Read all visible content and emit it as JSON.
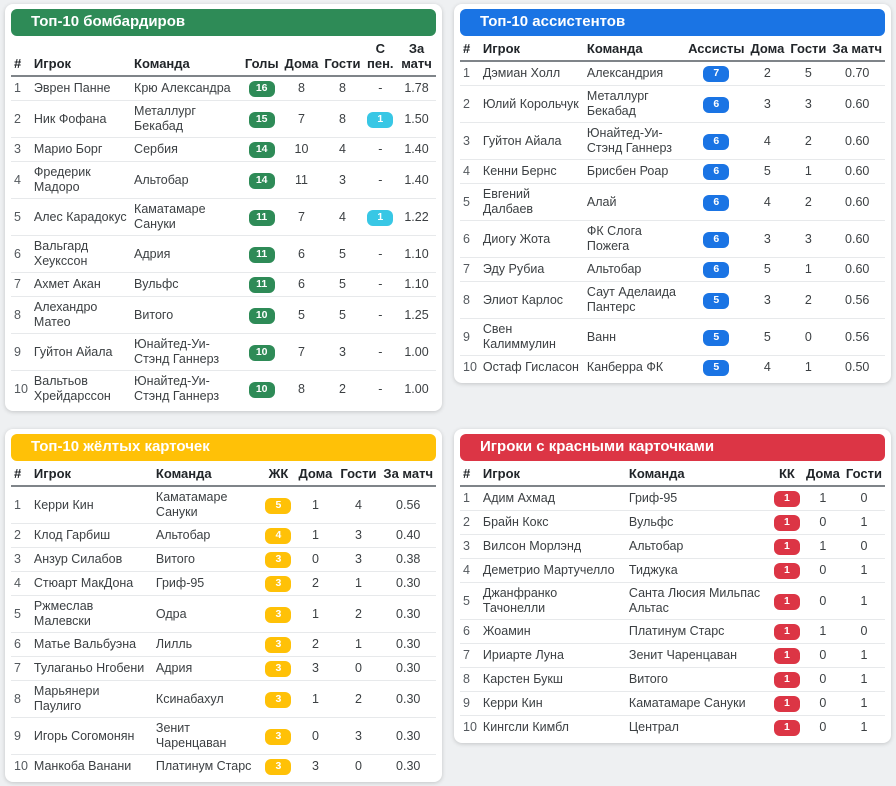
{
  "colors": {
    "page_background": "#eef0f2",
    "card_background": "#ffffff",
    "scorers_accent": "#2e8b57",
    "assists_accent": "#1a74e4",
    "yellow_accent": "#ffc107",
    "red_accent": "#dc3545",
    "penalty_badge": "#38c7e5"
  },
  "tables": [
    {
      "id": "scorers",
      "title": "Топ-10 бомбардиров",
      "accent": "#2e8b57",
      "badge_col": 3,
      "pen_col": 6,
      "pen_badge_color": "#38c7e5",
      "columns": [
        "#",
        "Игрок",
        "Команда",
        "Голы",
        "Дома",
        "Гости",
        "С пен.",
        "За матч"
      ],
      "rows": [
        [
          "1",
          "Эврен Панне",
          "Крю Александра",
          "16",
          "8",
          "8",
          "-",
          "1.78"
        ],
        [
          "2",
          "Ник Фофана",
          "Металлург Бекабад",
          "15",
          "7",
          "8",
          "1",
          "1.50"
        ],
        [
          "3",
          "Марио Борг",
          "Сербия",
          "14",
          "10",
          "4",
          "-",
          "1.40"
        ],
        [
          "4",
          "Фредерик Мадоро",
          "Альтобар",
          "14",
          "11",
          "3",
          "-",
          "1.40"
        ],
        [
          "5",
          "Алес Карадокус",
          "Каматамаре Сануки",
          "11",
          "7",
          "4",
          "1",
          "1.22"
        ],
        [
          "6",
          "Вальгард Хеукссон",
          "Адрия",
          "11",
          "6",
          "5",
          "-",
          "1.10"
        ],
        [
          "7",
          "Ахмет Акан",
          "Вульфс",
          "11",
          "6",
          "5",
          "-",
          "1.10"
        ],
        [
          "8",
          "Алехандро Матео",
          "Витого",
          "10",
          "5",
          "5",
          "-",
          "1.25"
        ],
        [
          "9",
          "Гуйтон Айала",
          "Юнайтед-Уи-Стэнд Ганнерз",
          "10",
          "7",
          "3",
          "-",
          "1.00"
        ],
        [
          "10",
          "Вальтьов Хрейдарссон",
          "Юнайтед-Уи-Стэнд Ганнерз",
          "10",
          "8",
          "2",
          "-",
          "1.00"
        ]
      ]
    },
    {
      "id": "assists",
      "title": "Топ-10 ассистентов",
      "accent": "#1a74e4",
      "badge_col": 3,
      "columns": [
        "#",
        "Игрок",
        "Команда",
        "Ассисты",
        "Дома",
        "Гости",
        "За матч"
      ],
      "rows": [
        [
          "1",
          "Дэмиан Холл",
          "Александрия",
          "7",
          "2",
          "5",
          "0.70"
        ],
        [
          "2",
          "Юлий Корольчук",
          "Металлург Бекабад",
          "6",
          "3",
          "3",
          "0.60"
        ],
        [
          "3",
          "Гуйтон Айала",
          "Юнайтед-Уи-Стэнд Ганнерз",
          "6",
          "4",
          "2",
          "0.60"
        ],
        [
          "4",
          "Кенни Бернс",
          "Брисбен Роар",
          "6",
          "5",
          "1",
          "0.60"
        ],
        [
          "5",
          "Евгений Далбаев",
          "Алай",
          "6",
          "4",
          "2",
          "0.60"
        ],
        [
          "6",
          "Диогу Жота",
          "ФК Слога Пожега",
          "6",
          "3",
          "3",
          "0.60"
        ],
        [
          "7",
          "Эду Рубиа",
          "Альтобар",
          "6",
          "5",
          "1",
          "0.60"
        ],
        [
          "8",
          "Элиот Карлос",
          "Саут Аделаида Пантерс",
          "5",
          "3",
          "2",
          "0.56"
        ],
        [
          "9",
          "Свен Калиммулин",
          "Ванн",
          "5",
          "5",
          "0",
          "0.56"
        ],
        [
          "10",
          "Остаф Гисласон",
          "Канберра ФК",
          "5",
          "4",
          "1",
          "0.50"
        ]
      ]
    },
    {
      "id": "yellow-cards",
      "title": "Топ-10 жёлтых карточек",
      "accent": "#ffc107",
      "badge_col": 3,
      "columns": [
        "#",
        "Игрок",
        "Команда",
        "ЖК",
        "Дома",
        "Гости",
        "За матч"
      ],
      "rows": [
        [
          "1",
          "Керри Кин",
          "Каматамаре Сануки",
          "5",
          "1",
          "4",
          "0.56"
        ],
        [
          "2",
          "Клод Гарбиш",
          "Альтобар",
          "4",
          "1",
          "3",
          "0.40"
        ],
        [
          "3",
          "Анзур Силабов",
          "Витого",
          "3",
          "0",
          "3",
          "0.38"
        ],
        [
          "4",
          "Стюарт МакДона",
          "Гриф-95",
          "3",
          "2",
          "1",
          "0.30"
        ],
        [
          "5",
          "Ржмеслав Малевски",
          "Одра",
          "3",
          "1",
          "2",
          "0.30"
        ],
        [
          "6",
          "Матье Вальбуэна",
          "Лилль",
          "3",
          "2",
          "1",
          "0.30"
        ],
        [
          "7",
          "Тулаганьо Нгобени",
          "Адрия",
          "3",
          "3",
          "0",
          "0.30"
        ],
        [
          "8",
          "Марьянери Паулиго",
          "Ксинабахул",
          "3",
          "1",
          "2",
          "0.30"
        ],
        [
          "9",
          "Игорь Согомонян",
          "Зенит Чаренцаван",
          "3",
          "0",
          "3",
          "0.30"
        ],
        [
          "10",
          "Манкоба Ванани",
          "Платинум Старс",
          "3",
          "3",
          "0",
          "0.30"
        ]
      ]
    },
    {
      "id": "red-cards",
      "title": "Игроки с красными карточками",
      "accent": "#dc3545",
      "badge_col": 3,
      "columns": [
        "#",
        "Игрок",
        "Команда",
        "КК",
        "Дома",
        "Гости"
      ],
      "rows": [
        [
          "1",
          "Адим Ахмад",
          "Гриф-95",
          "1",
          "1",
          "0"
        ],
        [
          "2",
          "Брайн Кокс",
          "Вульфс",
          "1",
          "0",
          "1"
        ],
        [
          "3",
          "Вилсон Морлэнд",
          "Альтобар",
          "1",
          "1",
          "0"
        ],
        [
          "4",
          "Деметрио Мартучелло",
          "Тиджука",
          "1",
          "0",
          "1"
        ],
        [
          "5",
          "Джанфранко Тачонелли",
          "Санта Люсия Мильпас Альтас",
          "1",
          "0",
          "1"
        ],
        [
          "6",
          "Жоамин",
          "Платинум Старс",
          "1",
          "1",
          "0"
        ],
        [
          "7",
          "Ириарте Луна",
          "Зенит Чаренцаван",
          "1",
          "0",
          "1"
        ],
        [
          "8",
          "Карстен Букш",
          "Витого",
          "1",
          "0",
          "1"
        ],
        [
          "9",
          "Керри Кин",
          "Каматамаре Сануки",
          "1",
          "0",
          "1"
        ],
        [
          "10",
          "Кингсли Кимбл",
          "Централ",
          "1",
          "0",
          "1"
        ]
      ]
    }
  ]
}
